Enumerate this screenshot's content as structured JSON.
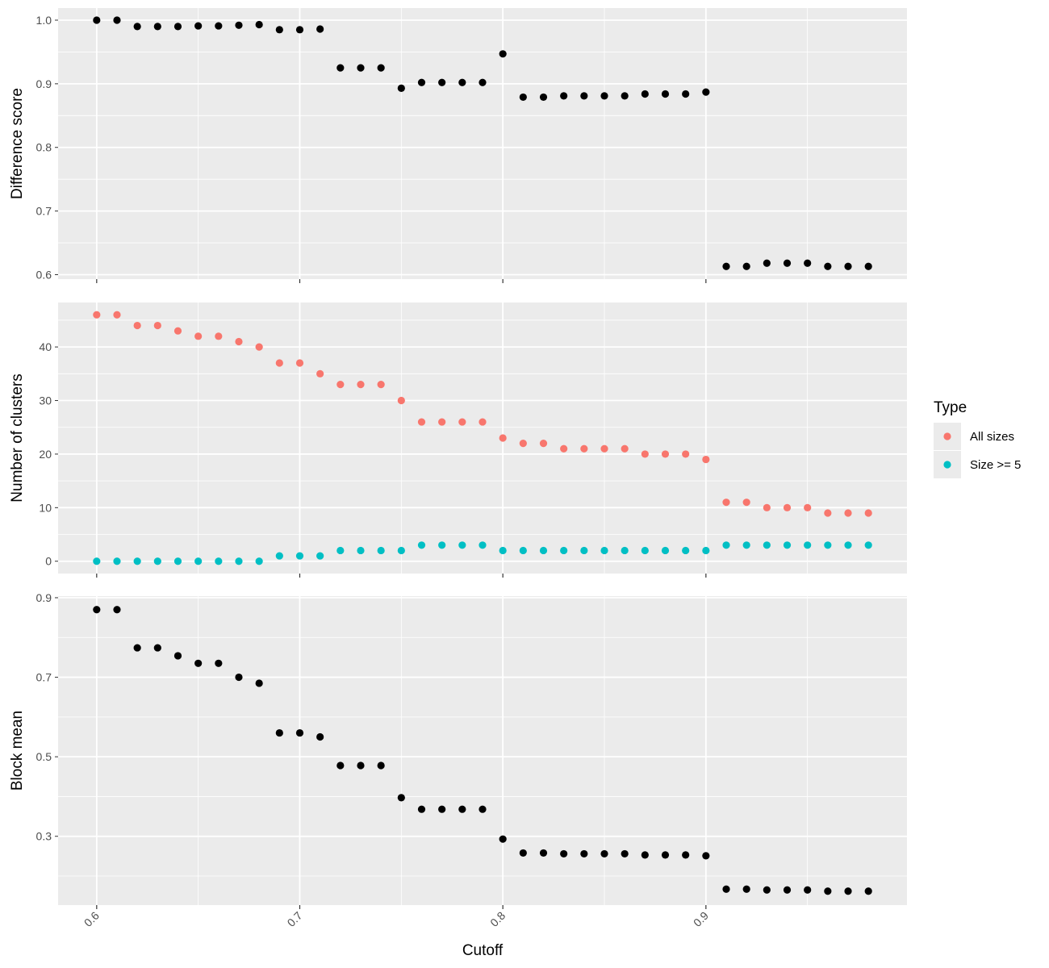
{
  "chart_data": [
    {
      "type": "scatter",
      "panel": "top",
      "ylabel": "Difference score",
      "xlabel": "",
      "xlim": [
        0.581,
        0.999
      ],
      "ylim": [
        0.593,
        1.019
      ],
      "yticks": [
        0.6,
        0.7,
        0.8,
        0.9,
        1.0
      ],
      "ytick_labels": [
        "0.6",
        "0.7",
        "0.8",
        "0.9",
        "1.0"
      ],
      "grid": true,
      "series": [
        {
          "color": "#000000",
          "x": [
            0.6,
            0.61,
            0.62,
            0.63,
            0.64,
            0.65,
            0.66,
            0.67,
            0.68,
            0.69,
            0.7,
            0.71,
            0.72,
            0.73,
            0.74,
            0.75,
            0.76,
            0.77,
            0.78,
            0.79,
            0.8,
            0.81,
            0.82,
            0.83,
            0.84,
            0.85,
            0.86,
            0.87,
            0.88,
            0.89,
            0.9,
            0.91,
            0.92,
            0.93,
            0.94,
            0.95,
            0.96,
            0.97,
            0.98
          ],
          "y": [
            1.0,
            1.0,
            0.99,
            0.99,
            0.99,
            0.991,
            0.991,
            0.992,
            0.993,
            0.985,
            0.985,
            0.986,
            0.925,
            0.925,
            0.925,
            0.893,
            0.902,
            0.902,
            0.902,
            0.902,
            0.947,
            0.879,
            0.879,
            0.881,
            0.881,
            0.881,
            0.881,
            0.884,
            0.884,
            0.884,
            0.887,
            0.613,
            0.613,
            0.618,
            0.618,
            0.618,
            0.613,
            0.613,
            0.613
          ]
        }
      ]
    },
    {
      "type": "scatter",
      "panel": "middle",
      "ylabel": "Number of clusters",
      "xlabel": "",
      "xlim": [
        0.581,
        0.999
      ],
      "ylim": [
        -2.3,
        48.3
      ],
      "yticks": [
        0,
        10,
        20,
        30,
        40
      ],
      "ytick_labels": [
        "0",
        "10",
        "20",
        "30",
        "40"
      ],
      "grid": true,
      "series": [
        {
          "name": "All sizes",
          "color": "#F8766D",
          "x": [
            0.6,
            0.61,
            0.62,
            0.63,
            0.64,
            0.65,
            0.66,
            0.67,
            0.68,
            0.69,
            0.7,
            0.71,
            0.72,
            0.73,
            0.74,
            0.75,
            0.76,
            0.77,
            0.78,
            0.79,
            0.8,
            0.81,
            0.82,
            0.83,
            0.84,
            0.85,
            0.86,
            0.87,
            0.88,
            0.89,
            0.9,
            0.91,
            0.92,
            0.93,
            0.94,
            0.95,
            0.96,
            0.97,
            0.98
          ],
          "y": [
            46,
            46,
            44,
            44,
            43,
            42,
            42,
            41,
            40,
            37,
            37,
            35,
            33,
            33,
            33,
            30,
            26,
            26,
            26,
            26,
            23,
            22,
            22,
            21,
            21,
            21,
            21,
            20,
            20,
            20,
            19,
            11,
            11,
            10,
            10,
            10,
            9,
            9,
            9
          ]
        },
        {
          "name": "Size >= 5",
          "color": "#00BFC4",
          "x": [
            0.6,
            0.61,
            0.62,
            0.63,
            0.64,
            0.65,
            0.66,
            0.67,
            0.68,
            0.69,
            0.7,
            0.71,
            0.72,
            0.73,
            0.74,
            0.75,
            0.76,
            0.77,
            0.78,
            0.79,
            0.8,
            0.81,
            0.82,
            0.83,
            0.84,
            0.85,
            0.86,
            0.87,
            0.88,
            0.89,
            0.9,
            0.91,
            0.92,
            0.93,
            0.94,
            0.95,
            0.96,
            0.97,
            0.98
          ],
          "y": [
            0,
            0,
            0,
            0,
            0,
            0,
            0,
            0,
            0,
            1,
            1,
            1,
            2,
            2,
            2,
            2,
            3,
            3,
            3,
            3,
            2,
            2,
            2,
            2,
            2,
            2,
            2,
            2,
            2,
            2,
            2,
            3,
            3,
            3,
            3,
            3,
            3,
            3,
            3
          ]
        }
      ]
    },
    {
      "type": "scatter",
      "panel": "bottom",
      "ylabel": "Block mean",
      "xlabel": "Cutoff",
      "xlim": [
        0.581,
        0.999
      ],
      "ylim": [
        0.127,
        0.904
      ],
      "yticks": [
        0.3,
        0.5,
        0.7,
        0.9
      ],
      "ytick_labels": [
        "0.3",
        "0.5",
        "0.7",
        "0.9"
      ],
      "minor_yticks": [
        0.2,
        0.4,
        0.6,
        0.8
      ],
      "xticks": [
        0.6,
        0.7,
        0.8,
        0.9
      ],
      "xtick_labels": [
        "0.6",
        "0.7",
        "0.8",
        "0.9"
      ],
      "grid": true,
      "series": [
        {
          "color": "#000000",
          "x": [
            0.6,
            0.61,
            0.62,
            0.63,
            0.64,
            0.65,
            0.66,
            0.67,
            0.68,
            0.69,
            0.7,
            0.71,
            0.72,
            0.73,
            0.74,
            0.75,
            0.76,
            0.77,
            0.78,
            0.79,
            0.8,
            0.81,
            0.82,
            0.83,
            0.84,
            0.85,
            0.86,
            0.87,
            0.88,
            0.89,
            0.9,
            0.91,
            0.92,
            0.93,
            0.94,
            0.95,
            0.96,
            0.97,
            0.98
          ],
          "y": [
            0.87,
            0.87,
            0.774,
            0.774,
            0.754,
            0.735,
            0.735,
            0.7,
            0.685,
            0.56,
            0.56,
            0.55,
            0.478,
            0.478,
            0.478,
            0.397,
            0.368,
            0.368,
            0.368,
            0.368,
            0.293,
            0.258,
            0.258,
            0.256,
            0.256,
            0.256,
            0.256,
            0.253,
            0.253,
            0.253,
            0.251,
            0.167,
            0.167,
            0.165,
            0.165,
            0.165,
            0.162,
            0.162,
            0.162
          ]
        }
      ]
    }
  ],
  "legend": {
    "title": "Type",
    "placement": "right",
    "entries": [
      {
        "label": "All sizes",
        "color": "#F8766D"
      },
      {
        "label": "Size >= 5",
        "color": "#00BFC4"
      }
    ]
  },
  "colors": {
    "panel_background": "#EBEBEB",
    "grid": "#FFFFFF",
    "tick": "#333333",
    "tick_text": "#4D4D4D"
  }
}
